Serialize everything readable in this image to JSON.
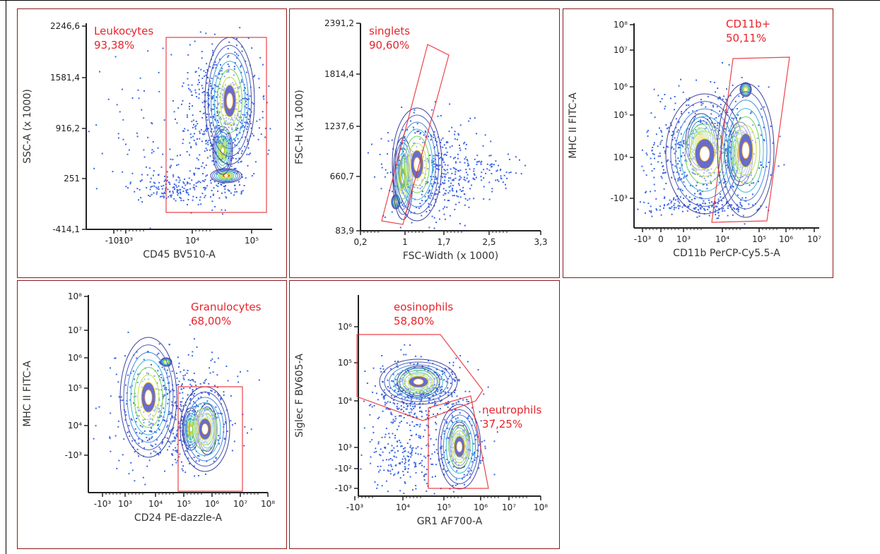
{
  "colors": {
    "border": "#8b1a1a",
    "gate": "#e8232a",
    "dot": "#3a66e6",
    "axis": "#222222"
  },
  "chart_data": [
    {
      "type": "scatter",
      "subtype": "flow-cytometry-contour",
      "xlabel": "CD45 BV510-A",
      "ylabel": "SSC-A (x 1000)",
      "xlim": [
        -200,
        200000
      ],
      "ylim": [
        -414.1,
        2246.6
      ],
      "xscale": "biexponential",
      "yscale": "linear",
      "x_ticks": [
        "-10²",
        "10³",
        "10⁴",
        "10⁵"
      ],
      "y_ticks": [
        "-414,1",
        "251",
        "916,2",
        "1581,4",
        "2246,6"
      ],
      "gates": [
        {
          "name": "Leukocytes",
          "percent": "93,38%"
        }
      ]
    },
    {
      "type": "scatter",
      "subtype": "flow-cytometry-contour",
      "xlabel": "FSC-Width (x 1000)",
      "ylabel": "FSC-H (x 1000)",
      "xlim": [
        0.2,
        3.3
      ],
      "ylim": [
        83.9,
        2391.2
      ],
      "xscale": "linear",
      "yscale": "linear",
      "x_ticks": [
        "0,2",
        "1",
        "1,7",
        "2,5",
        "3,3"
      ],
      "y_ticks": [
        "83,9",
        "660,7",
        "1237,6",
        "1814,4",
        "2391,2"
      ],
      "gates": [
        {
          "name": "singlets",
          "percent": "90,60%"
        }
      ]
    },
    {
      "type": "scatter",
      "subtype": "flow-cytometry-contour",
      "xlabel": "CD11b PerCP-Cy5.5-A",
      "ylabel": "MHC II FITC-A",
      "xlim": [
        -1000,
        10000000
      ],
      "ylim": [
        -1000,
        100000000
      ],
      "xscale": "biexponential",
      "yscale": "biexponential",
      "x_ticks": [
        "-10³",
        "0",
        "10³",
        "10⁴",
        "10⁵",
        "10⁶",
        "10⁷"
      ],
      "y_ticks": [
        "-10³",
        "10⁴",
        "10⁵",
        "10⁶",
        "10⁷",
        "10⁸"
      ],
      "gates": [
        {
          "name": "CD11b+",
          "percent": "50,11%"
        }
      ]
    },
    {
      "type": "scatter",
      "subtype": "flow-cytometry-contour",
      "xlabel": "CD24 PE-dazzle-A",
      "ylabel": "MHC II FITC-A",
      "xlim": [
        -1000,
        100000000
      ],
      "ylim": [
        -1000,
        100000000
      ],
      "xscale": "biexponential",
      "yscale": "biexponential",
      "x_ticks": [
        "-10³",
        "10³",
        "10⁴",
        "10⁵",
        "10⁶",
        "10⁷",
        "10⁸"
      ],
      "y_ticks": [
        "-10³",
        "10⁴",
        "10⁵",
        "10⁶",
        "10⁷",
        "10⁸"
      ],
      "gates": [
        {
          "name": "Granulocytes",
          "percent": "68,00%"
        }
      ]
    },
    {
      "type": "scatter",
      "subtype": "flow-cytometry-contour",
      "xlabel": "GR1 AF700-A",
      "ylabel": "Siglec F BV605-A",
      "xlim": [
        -1000,
        100000000
      ],
      "ylim": [
        -1000,
        1000000
      ],
      "xscale": "biexponential",
      "yscale": "biexponential",
      "x_ticks": [
        "-10³",
        "10⁴",
        "10⁵",
        "10⁶",
        "10⁷",
        "10⁸"
      ],
      "y_ticks": [
        "-10³",
        "-10²",
        "10³",
        "10⁴",
        "10⁵",
        "10⁶"
      ],
      "gates": [
        {
          "name": "eosinophils",
          "percent": "58,80%"
        },
        {
          "name": "neutrophils",
          "percent": "37,25%"
        }
      ]
    }
  ]
}
